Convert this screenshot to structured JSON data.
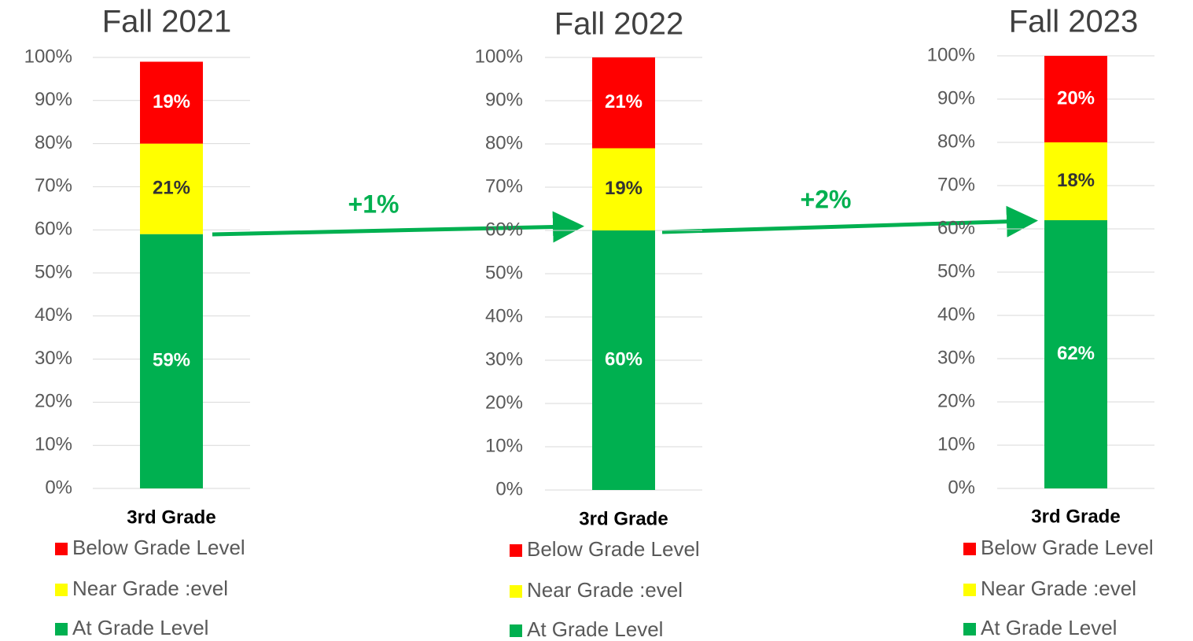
{
  "chart_data": [
    {
      "type": "stacked_bar",
      "title": "Fall 2021",
      "categories": [
        "3rd Grade"
      ],
      "series": [
        {
          "name": "Below Grade Level",
          "color": "#ff0000",
          "values": [
            19
          ],
          "value_labels": [
            "19%"
          ]
        },
        {
          "name": "Near Grade :evel",
          "color": "#ffff00",
          "values": [
            21
          ],
          "value_labels": [
            "21%"
          ]
        },
        {
          "name": "At Grade Level",
          "color": "#00b050",
          "values": [
            59
          ],
          "value_labels": [
            "59%"
          ]
        }
      ],
      "ylim": [
        0,
        100
      ],
      "yticks": [
        {
          "value": 0,
          "label": "0%"
        },
        {
          "value": 10,
          "label": "10%"
        },
        {
          "value": 20,
          "label": "20%"
        },
        {
          "value": 30,
          "label": "30%"
        },
        {
          "value": 40,
          "label": "40%"
        },
        {
          "value": 50,
          "label": "50%"
        },
        {
          "value": 60,
          "label": "60%"
        },
        {
          "value": 70,
          "label": "70%"
        },
        {
          "value": 80,
          "label": "80%"
        },
        {
          "value": 90,
          "label": "90%"
        },
        {
          "value": 100,
          "label": "100%"
        }
      ],
      "grid": true,
      "legend": "bottom"
    },
    {
      "type": "stacked_bar",
      "title": "Fall 2022",
      "categories": [
        "3rd Grade"
      ],
      "series": [
        {
          "name": "Below Grade Level",
          "color": "#ff0000",
          "values": [
            21
          ],
          "value_labels": [
            "21%"
          ]
        },
        {
          "name": "Near Grade :evel",
          "color": "#ffff00",
          "values": [
            19
          ],
          "value_labels": [
            "19%"
          ]
        },
        {
          "name": "At Grade Level",
          "color": "#00b050",
          "values": [
            60
          ],
          "value_labels": [
            "60%"
          ]
        }
      ],
      "ylim": [
        0,
        100
      ],
      "yticks": [
        {
          "value": 0,
          "label": "0%"
        },
        {
          "value": 10,
          "label": "10%"
        },
        {
          "value": 20,
          "label": "20%"
        },
        {
          "value": 30,
          "label": "30%"
        },
        {
          "value": 40,
          "label": "40%"
        },
        {
          "value": 50,
          "label": "50%"
        },
        {
          "value": 60,
          "label": "60%"
        },
        {
          "value": 70,
          "label": "70%"
        },
        {
          "value": 80,
          "label": "80%"
        },
        {
          "value": 90,
          "label": "90%"
        },
        {
          "value": 100,
          "label": "100%"
        }
      ],
      "grid": true,
      "legend": "bottom"
    },
    {
      "type": "stacked_bar",
      "title": "Fall 2023",
      "categories": [
        "3rd Grade"
      ],
      "series": [
        {
          "name": "Below Grade Level",
          "color": "#ff0000",
          "values": [
            20
          ],
          "value_labels": [
            "20%"
          ]
        },
        {
          "name": "Near Grade :evel",
          "color": "#ffff00",
          "values": [
            18
          ],
          "value_labels": [
            "18%"
          ]
        },
        {
          "name": "At Grade Level",
          "color": "#00b050",
          "values": [
            62
          ],
          "value_labels": [
            "62%"
          ]
        }
      ],
      "ylim": [
        0,
        100
      ],
      "yticks": [
        {
          "value": 0,
          "label": "0%"
        },
        {
          "value": 10,
          "label": "10%"
        },
        {
          "value": 20,
          "label": "20%"
        },
        {
          "value": 30,
          "label": "30%"
        },
        {
          "value": 40,
          "label": "40%"
        },
        {
          "value": 50,
          "label": "50%"
        },
        {
          "value": 60,
          "label": "60%"
        },
        {
          "value": 70,
          "label": "70%"
        },
        {
          "value": 80,
          "label": "80%"
        },
        {
          "value": 90,
          "label": "90%"
        },
        {
          "value": 100,
          "label": "100%"
        }
      ],
      "grid": true,
      "legend": "bottom"
    }
  ],
  "annotations": [
    "+1%",
    "+2%"
  ]
}
